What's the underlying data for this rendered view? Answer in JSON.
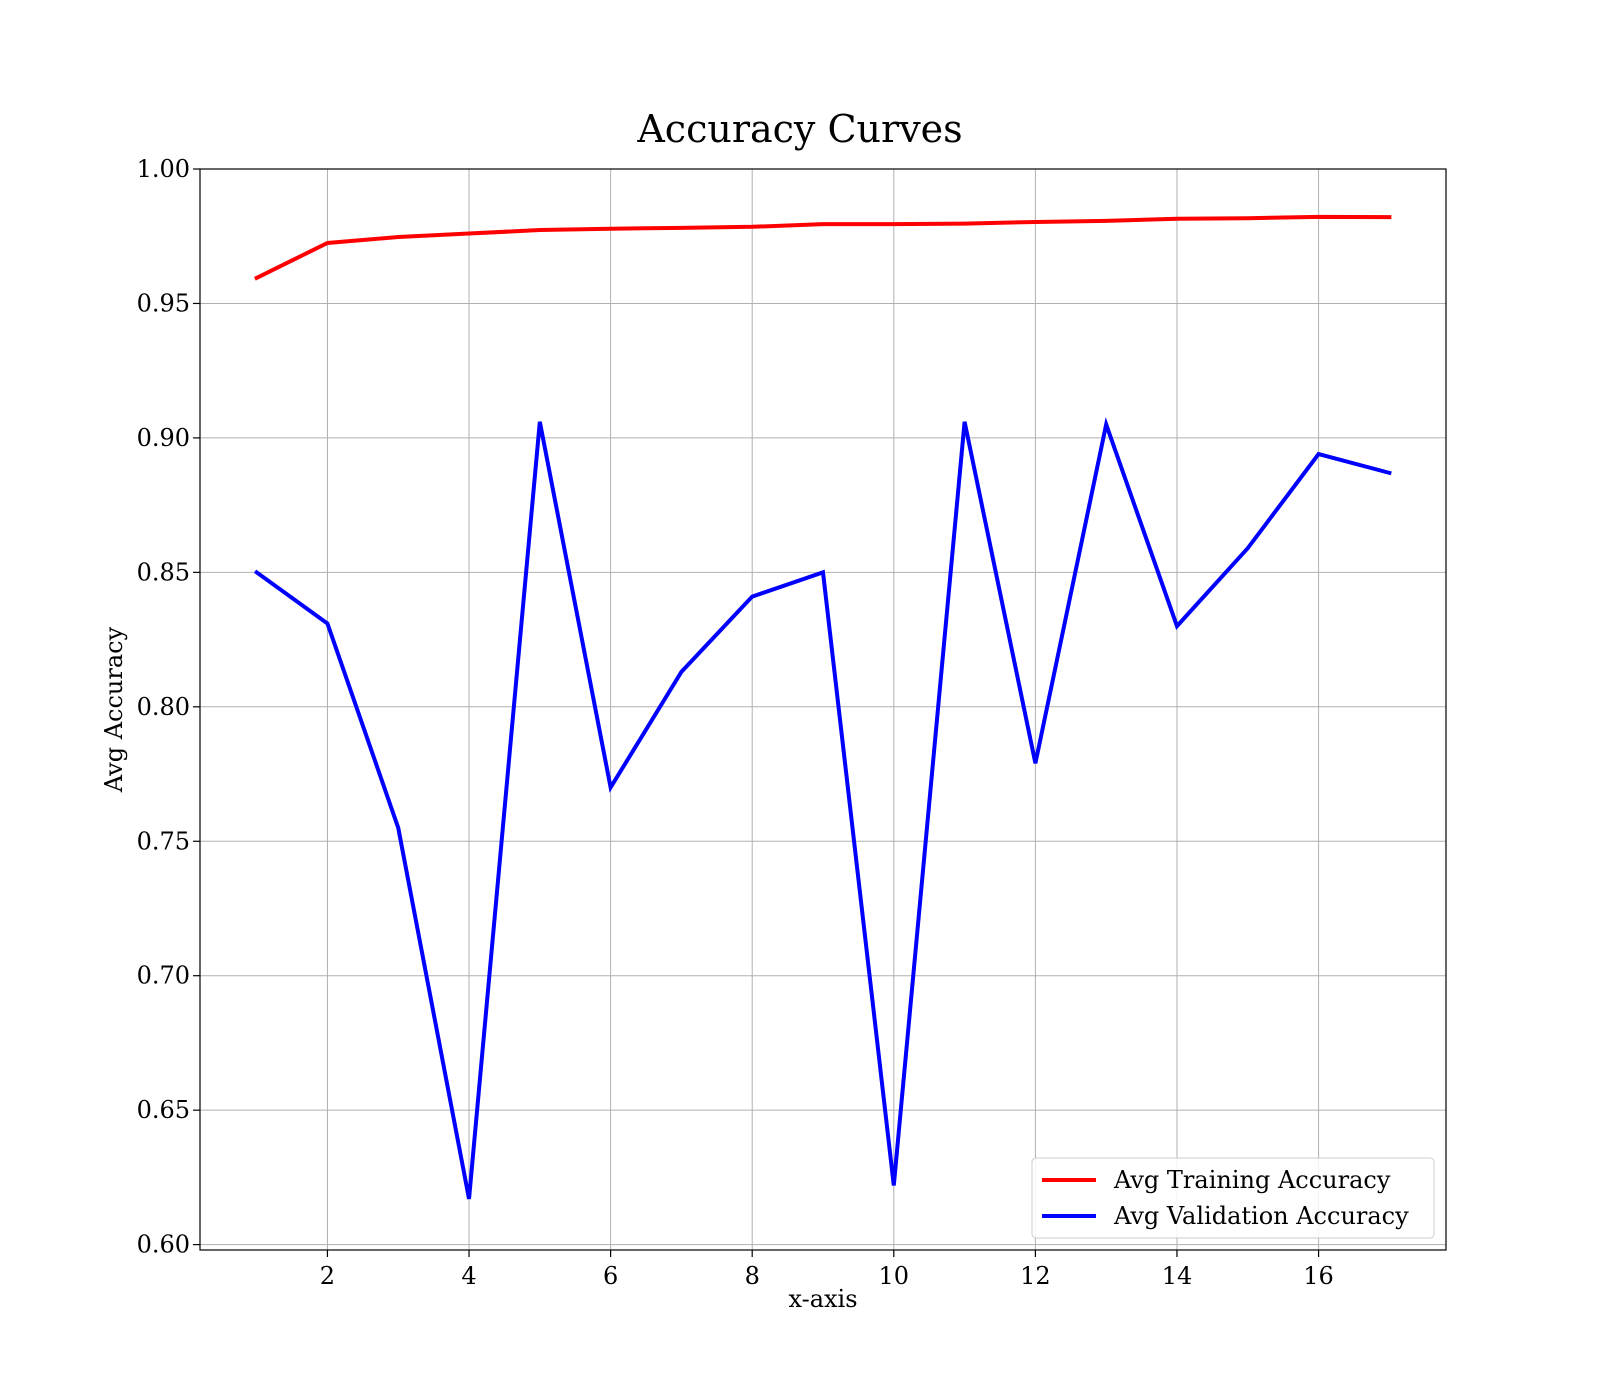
{
  "chart_data": {
    "type": "line",
    "title": "Accuracy Curves",
    "xlabel": "x-axis",
    "ylabel": "Avg Accuracy",
    "xlim": [
      0.2,
      17.8
    ],
    "ylim": [
      0.598,
      1.0
    ],
    "xticks": [
      2,
      4,
      6,
      8,
      10,
      12,
      14,
      16
    ],
    "xtick_labels": [
      "2",
      "4",
      "6",
      "8",
      "10",
      "12",
      "14",
      "16"
    ],
    "yticks": [
      0.6,
      0.65,
      0.7,
      0.75,
      0.8,
      0.85,
      0.9,
      0.95,
      1.0
    ],
    "ytick_labels": [
      "0.60",
      "0.65",
      "0.70",
      "0.75",
      "0.80",
      "0.85",
      "0.90",
      "0.95",
      "1.00"
    ],
    "grid": true,
    "legend_position": "bottom-right",
    "x": [
      1,
      2,
      3,
      4,
      5,
      6,
      7,
      8,
      9,
      10,
      11,
      12,
      13,
      14,
      15,
      16,
      17
    ],
    "series": [
      {
        "name": "Avg Training Accuracy",
        "color": "#ff0000",
        "values": [
          0.9595,
          0.9725,
          0.9747,
          0.976,
          0.9773,
          0.9778,
          0.9781,
          0.9785,
          0.9795,
          0.9795,
          0.9797,
          0.9803,
          0.9807,
          0.9815,
          0.9817,
          0.9822,
          0.9821
        ]
      },
      {
        "name": "Avg Validation Accuracy",
        "color": "#0000ff",
        "values": [
          0.85,
          0.831,
          0.755,
          0.617,
          0.906,
          0.77,
          0.813,
          0.841,
          0.85,
          0.622,
          0.906,
          0.779,
          0.905,
          0.83,
          0.859,
          0.894,
          0.887
        ]
      }
    ]
  }
}
